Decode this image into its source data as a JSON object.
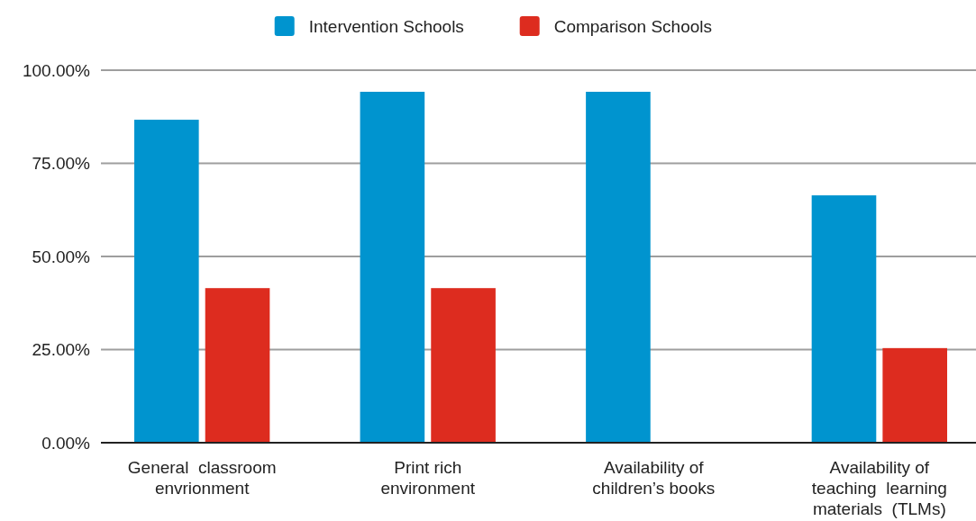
{
  "chart_data": {
    "type": "bar",
    "categories": [
      "General  classroom\nenvrionment",
      "Print rich\nenvironment",
      "Availability of\nchildren’s books",
      "Availability of\nteaching  learning\nmaterials  (TLMs)"
    ],
    "series": [
      {
        "name": "Intervention Schools",
        "color": "#0094cf",
        "values": [
          86.7,
          94.2,
          94.2,
          66.4
        ]
      },
      {
        "name": "Comparison Schools",
        "color": "#dd2c1f",
        "values": [
          41.5,
          41.5,
          0,
          25.4
        ]
      }
    ],
    "ylim": [
      0,
      100
    ],
    "yticks": [
      {
        "value": 0,
        "label": "0.00%"
      },
      {
        "value": 25,
        "label": "25.00%"
      },
      {
        "value": 50,
        "label": "50.00%"
      },
      {
        "value": 75,
        "label": "75.00%"
      },
      {
        "value": 100,
        "label": "100.00%"
      }
    ],
    "grid": "y",
    "legend": "top"
  }
}
